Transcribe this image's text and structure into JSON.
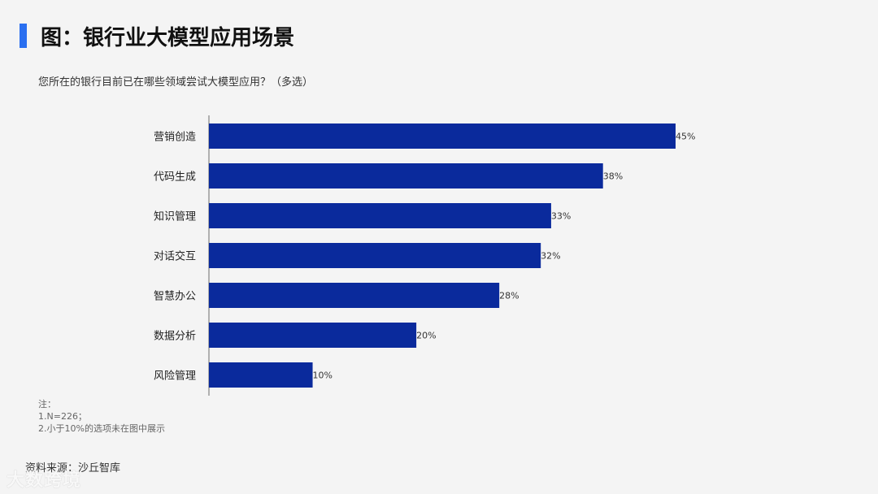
{
  "title": "图：银行业大模型应用场景",
  "chart_data": {
    "type": "bar",
    "orientation": "horizontal",
    "title": "您所在的银行目前已在哪些领域尝试大模型应用？（多选）",
    "categories": [
      "营销创造",
      "代码生成",
      "知识管理",
      "对话交互",
      "智慧办公",
      "数据分析",
      "风险管理"
    ],
    "values": [
      45,
      38,
      33,
      32,
      28,
      20,
      10
    ],
    "value_labels": [
      "45%",
      "38%",
      "33%",
      "32%",
      "28%",
      "20%",
      "10%"
    ],
    "unit": "%",
    "xlim": [
      0,
      45
    ],
    "grid": false,
    "bar_color": "#0a2a9c"
  },
  "notes": {
    "heading": "注：",
    "lines": [
      "1.N=226；",
      "2.小于10%的选项未在图中展示"
    ]
  },
  "source": "资料来源：沙丘智库",
  "watermark": "大数跨境",
  "colors": {
    "accent": "#2a6ff0",
    "bar": "#0a2a9c",
    "background": "#f4f4f4"
  }
}
